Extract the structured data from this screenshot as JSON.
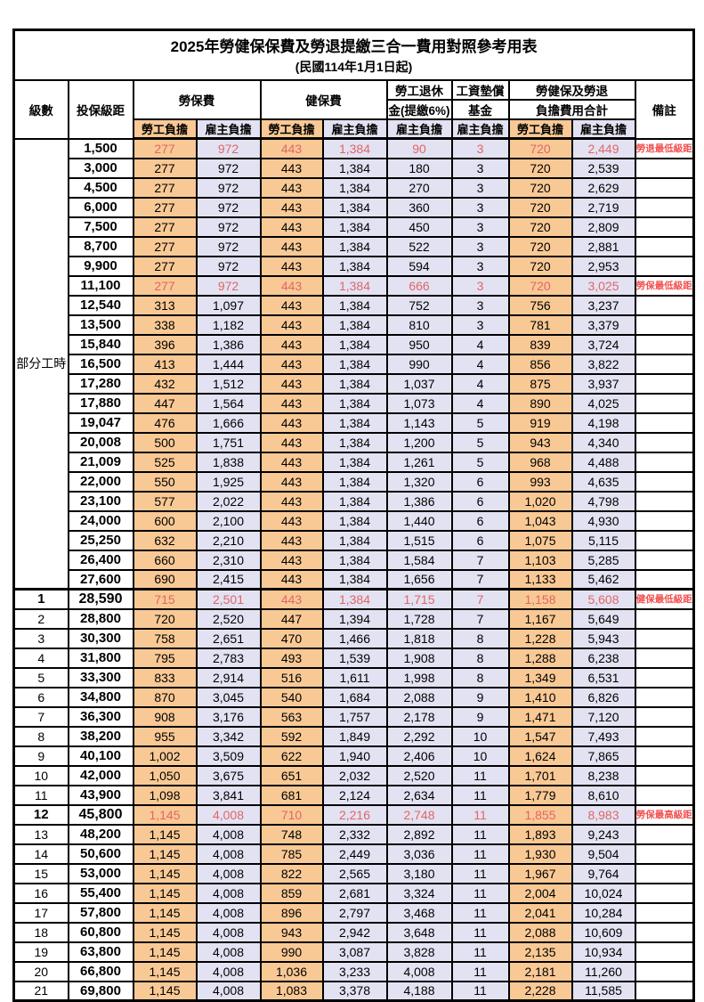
{
  "title": "2025年勞健保保費及勞退提繳三合一費用對照參考用表",
  "subtitle": "(民國114年1月1日起)",
  "colors": {
    "employee_column_bg": "#F9C995",
    "employer_column_bg": "#E3E2F2",
    "highlight_value_red": "#E06666",
    "remark_red": "#F25050",
    "grid_border": "#000000"
  },
  "header": {
    "level": "級數",
    "bracket": "投保級距",
    "labor_fee": "勞保費",
    "health_fee": "健保費",
    "pension_line1": "勞工退休",
    "pension_line2": "金(提繳6%)",
    "wage_fund_line1": "工資墊償",
    "wage_fund_line2": "基金",
    "total_line1": "勞健保及勞退",
    "total_line2": "負擔費用合計",
    "remark": "備註",
    "employee": "勞工負擔",
    "employer": "雇主負擔"
  },
  "table": {
    "part_time_label": "部分工時",
    "part_time_rowspan": 23,
    "rows": [
      {
        "level": "",
        "bracket": "1,500",
        "values": [
          "277",
          "972",
          "443",
          "1,384",
          "90",
          "3",
          "720",
          "2,449"
        ],
        "remark": "勞退最低級距",
        "highlight": true,
        "emph": false,
        "thick_top": false
      },
      {
        "level": "",
        "bracket": "3,000",
        "values": [
          "277",
          "972",
          "443",
          "1,384",
          "180",
          "3",
          "720",
          "2,539"
        ],
        "remark": "",
        "highlight": false,
        "emph": false,
        "thick_top": false
      },
      {
        "level": "",
        "bracket": "4,500",
        "values": [
          "277",
          "972",
          "443",
          "1,384",
          "270",
          "3",
          "720",
          "2,629"
        ],
        "remark": "",
        "highlight": false,
        "emph": false,
        "thick_top": false
      },
      {
        "level": "",
        "bracket": "6,000",
        "values": [
          "277",
          "972",
          "443",
          "1,384",
          "360",
          "3",
          "720",
          "2,719"
        ],
        "remark": "",
        "highlight": false,
        "emph": false,
        "thick_top": false
      },
      {
        "level": "",
        "bracket": "7,500",
        "values": [
          "277",
          "972",
          "443",
          "1,384",
          "450",
          "3",
          "720",
          "2,809"
        ],
        "remark": "",
        "highlight": false,
        "emph": false,
        "thick_top": false
      },
      {
        "level": "",
        "bracket": "8,700",
        "values": [
          "277",
          "972",
          "443",
          "1,384",
          "522",
          "3",
          "720",
          "2,881"
        ],
        "remark": "",
        "highlight": false,
        "emph": false,
        "thick_top": false
      },
      {
        "level": "",
        "bracket": "9,900",
        "values": [
          "277",
          "972",
          "443",
          "1,384",
          "594",
          "3",
          "720",
          "2,953"
        ],
        "remark": "",
        "highlight": false,
        "emph": false,
        "thick_top": false
      },
      {
        "level": "",
        "bracket": "11,100",
        "values": [
          "277",
          "972",
          "443",
          "1,384",
          "666",
          "3",
          "720",
          "3,025"
        ],
        "remark": "勞保最低級距",
        "highlight": true,
        "emph": false,
        "thick_top": false
      },
      {
        "level": "",
        "bracket": "12,540",
        "values": [
          "313",
          "1,097",
          "443",
          "1,384",
          "752",
          "3",
          "756",
          "3,237"
        ],
        "remark": "",
        "highlight": false,
        "emph": false,
        "thick_top": false
      },
      {
        "level": "",
        "bracket": "13,500",
        "values": [
          "338",
          "1,182",
          "443",
          "1,384",
          "810",
          "3",
          "781",
          "3,379"
        ],
        "remark": "",
        "highlight": false,
        "emph": false,
        "thick_top": false
      },
      {
        "level": "",
        "bracket": "15,840",
        "values": [
          "396",
          "1,386",
          "443",
          "1,384",
          "950",
          "4",
          "839",
          "3,724"
        ],
        "remark": "",
        "highlight": false,
        "emph": false,
        "thick_top": false
      },
      {
        "level": "",
        "bracket": "16,500",
        "values": [
          "413",
          "1,444",
          "443",
          "1,384",
          "990",
          "4",
          "856",
          "3,822"
        ],
        "remark": "",
        "highlight": false,
        "emph": false,
        "thick_top": false
      },
      {
        "level": "",
        "bracket": "17,280",
        "values": [
          "432",
          "1,512",
          "443",
          "1,384",
          "1,037",
          "4",
          "875",
          "3,937"
        ],
        "remark": "",
        "highlight": false,
        "emph": false,
        "thick_top": false
      },
      {
        "level": "",
        "bracket": "17,880",
        "values": [
          "447",
          "1,564",
          "443",
          "1,384",
          "1,073",
          "4",
          "890",
          "4,025"
        ],
        "remark": "",
        "highlight": false,
        "emph": false,
        "thick_top": false
      },
      {
        "level": "",
        "bracket": "19,047",
        "values": [
          "476",
          "1,666",
          "443",
          "1,384",
          "1,143",
          "5",
          "919",
          "4,198"
        ],
        "remark": "",
        "highlight": false,
        "emph": false,
        "thick_top": false
      },
      {
        "level": "",
        "bracket": "20,008",
        "values": [
          "500",
          "1,751",
          "443",
          "1,384",
          "1,200",
          "5",
          "943",
          "4,340"
        ],
        "remark": "",
        "highlight": false,
        "emph": false,
        "thick_top": false
      },
      {
        "level": "",
        "bracket": "21,009",
        "values": [
          "525",
          "1,838",
          "443",
          "1,384",
          "1,261",
          "5",
          "968",
          "4,488"
        ],
        "remark": "",
        "highlight": false,
        "emph": false,
        "thick_top": false
      },
      {
        "level": "",
        "bracket": "22,000",
        "values": [
          "550",
          "1,925",
          "443",
          "1,384",
          "1,320",
          "6",
          "993",
          "4,635"
        ],
        "remark": "",
        "highlight": false,
        "emph": false,
        "thick_top": false
      },
      {
        "level": "",
        "bracket": "23,100",
        "values": [
          "577",
          "2,022",
          "443",
          "1,384",
          "1,386",
          "6",
          "1,020",
          "4,798"
        ],
        "remark": "",
        "highlight": false,
        "emph": false,
        "thick_top": false
      },
      {
        "level": "",
        "bracket": "24,000",
        "values": [
          "600",
          "2,100",
          "443",
          "1,384",
          "1,440",
          "6",
          "1,043",
          "4,930"
        ],
        "remark": "",
        "highlight": false,
        "emph": false,
        "thick_top": false
      },
      {
        "level": "",
        "bracket": "25,250",
        "values": [
          "632",
          "2,210",
          "443",
          "1,384",
          "1,515",
          "6",
          "1,075",
          "5,115"
        ],
        "remark": "",
        "highlight": false,
        "emph": false,
        "thick_top": false
      },
      {
        "level": "",
        "bracket": "26,400",
        "values": [
          "660",
          "2,310",
          "443",
          "1,384",
          "1,584",
          "7",
          "1,103",
          "5,285"
        ],
        "remark": "",
        "highlight": false,
        "emph": false,
        "thick_top": false
      },
      {
        "level": "",
        "bracket": "27,600",
        "values": [
          "690",
          "2,415",
          "443",
          "1,384",
          "1,656",
          "7",
          "1,133",
          "5,462"
        ],
        "remark": "",
        "highlight": false,
        "emph": false,
        "thick_top": false
      },
      {
        "level": "1",
        "bracket": "28,590",
        "values": [
          "715",
          "2,501",
          "443",
          "1,384",
          "1,715",
          "7",
          "1,158",
          "5,608"
        ],
        "remark": "健保最低級距",
        "highlight": true,
        "emph": true,
        "thick_top": true
      },
      {
        "level": "2",
        "bracket": "28,800",
        "values": [
          "720",
          "2,520",
          "447",
          "1,394",
          "1,728",
          "7",
          "1,167",
          "5,649"
        ],
        "remark": "",
        "highlight": false,
        "emph": false,
        "thick_top": false
      },
      {
        "level": "3",
        "bracket": "30,300",
        "values": [
          "758",
          "2,651",
          "470",
          "1,466",
          "1,818",
          "8",
          "1,228",
          "5,943"
        ],
        "remark": "",
        "highlight": false,
        "emph": false,
        "thick_top": false
      },
      {
        "level": "4",
        "bracket": "31,800",
        "values": [
          "795",
          "2,783",
          "493",
          "1,539",
          "1,908",
          "8",
          "1,288",
          "6,238"
        ],
        "remark": "",
        "highlight": false,
        "emph": false,
        "thick_top": false
      },
      {
        "level": "5",
        "bracket": "33,300",
        "values": [
          "833",
          "2,914",
          "516",
          "1,611",
          "1,998",
          "8",
          "1,349",
          "6,531"
        ],
        "remark": "",
        "highlight": false,
        "emph": false,
        "thick_top": false
      },
      {
        "level": "6",
        "bracket": "34,800",
        "values": [
          "870",
          "3,045",
          "540",
          "1,684",
          "2,088",
          "9",
          "1,410",
          "6,826"
        ],
        "remark": "",
        "highlight": false,
        "emph": false,
        "thick_top": false
      },
      {
        "level": "7",
        "bracket": "36,300",
        "values": [
          "908",
          "3,176",
          "563",
          "1,757",
          "2,178",
          "9",
          "1,471",
          "7,120"
        ],
        "remark": "",
        "highlight": false,
        "emph": false,
        "thick_top": false
      },
      {
        "level": "8",
        "bracket": "38,200",
        "values": [
          "955",
          "3,342",
          "592",
          "1,849",
          "2,292",
          "10",
          "1,547",
          "7,493"
        ],
        "remark": "",
        "highlight": false,
        "emph": false,
        "thick_top": false
      },
      {
        "level": "9",
        "bracket": "40,100",
        "values": [
          "1,002",
          "3,509",
          "622",
          "1,940",
          "2,406",
          "10",
          "1,624",
          "7,865"
        ],
        "remark": "",
        "highlight": false,
        "emph": false,
        "thick_top": false
      },
      {
        "level": "10",
        "bracket": "42,000",
        "values": [
          "1,050",
          "3,675",
          "651",
          "2,032",
          "2,520",
          "11",
          "1,701",
          "8,238"
        ],
        "remark": "",
        "highlight": false,
        "emph": false,
        "thick_top": false
      },
      {
        "level": "11",
        "bracket": "43,900",
        "values": [
          "1,098",
          "3,841",
          "681",
          "2,124",
          "2,634",
          "11",
          "1,779",
          "8,610"
        ],
        "remark": "",
        "highlight": false,
        "emph": false,
        "thick_top": false
      },
      {
        "level": "12",
        "bracket": "45,800",
        "values": [
          "1,145",
          "4,008",
          "710",
          "2,216",
          "2,748",
          "11",
          "1,855",
          "8,983"
        ],
        "remark": "勞保最高級距",
        "highlight": true,
        "emph": true,
        "thick_top": false
      },
      {
        "level": "13",
        "bracket": "48,200",
        "values": [
          "1,145",
          "4,008",
          "748",
          "2,332",
          "2,892",
          "11",
          "1,893",
          "9,243"
        ],
        "remark": "",
        "highlight": false,
        "emph": false,
        "thick_top": false
      },
      {
        "level": "14",
        "bracket": "50,600",
        "values": [
          "1,145",
          "4,008",
          "785",
          "2,449",
          "3,036",
          "11",
          "1,930",
          "9,504"
        ],
        "remark": "",
        "highlight": false,
        "emph": false,
        "thick_top": false
      },
      {
        "level": "15",
        "bracket": "53,000",
        "values": [
          "1,145",
          "4,008",
          "822",
          "2,565",
          "3,180",
          "11",
          "1,967",
          "9,764"
        ],
        "remark": "",
        "highlight": false,
        "emph": false,
        "thick_top": false
      },
      {
        "level": "16",
        "bracket": "55,400",
        "values": [
          "1,145",
          "4,008",
          "859",
          "2,681",
          "3,324",
          "11",
          "2,004",
          "10,024"
        ],
        "remark": "",
        "highlight": false,
        "emph": false,
        "thick_top": false
      },
      {
        "level": "17",
        "bracket": "57,800",
        "values": [
          "1,145",
          "4,008",
          "896",
          "2,797",
          "3,468",
          "11",
          "2,041",
          "10,284"
        ],
        "remark": "",
        "highlight": false,
        "emph": false,
        "thick_top": false
      },
      {
        "level": "18",
        "bracket": "60,800",
        "values": [
          "1,145",
          "4,008",
          "943",
          "2,942",
          "3,648",
          "11",
          "2,088",
          "10,609"
        ],
        "remark": "",
        "highlight": false,
        "emph": false,
        "thick_top": false
      },
      {
        "level": "19",
        "bracket": "63,800",
        "values": [
          "1,145",
          "4,008",
          "990",
          "3,087",
          "3,828",
          "11",
          "2,135",
          "10,934"
        ],
        "remark": "",
        "highlight": false,
        "emph": false,
        "thick_top": false
      },
      {
        "level": "20",
        "bracket": "66,800",
        "values": [
          "1,145",
          "4,008",
          "1,036",
          "3,233",
          "4,008",
          "11",
          "2,181",
          "11,260"
        ],
        "remark": "",
        "highlight": false,
        "emph": false,
        "thick_top": false
      },
      {
        "level": "21",
        "bracket": "69,800",
        "values": [
          "1,145",
          "4,008",
          "1,083",
          "3,378",
          "4,188",
          "11",
          "2,228",
          "11,585"
        ],
        "remark": "",
        "highlight": false,
        "emph": false,
        "thick_top": false
      }
    ]
  }
}
